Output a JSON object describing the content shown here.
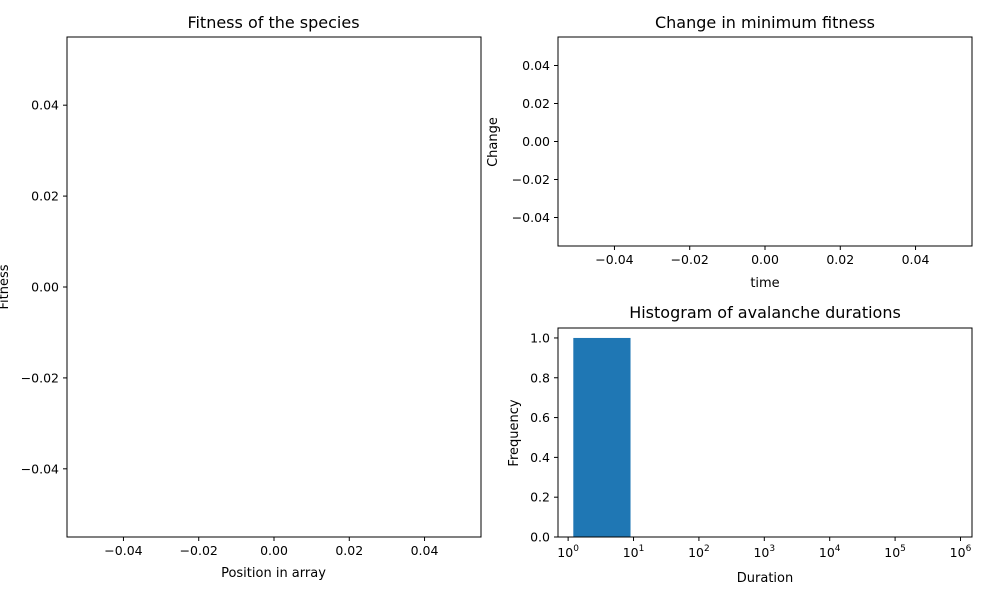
{
  "colors": {
    "bar": "#1f77b4",
    "axis": "#000000",
    "background": "#ffffff"
  },
  "chart_data": [
    {
      "id": "fitness",
      "type": "scatter",
      "title": "Fitness of the species",
      "xlabel": "Position in array",
      "ylabel": "Fitness",
      "x": [],
      "y": [],
      "xlim": [
        -0.055,
        0.055
      ],
      "ylim": [
        -0.055,
        0.055
      ],
      "xticks": [
        -0.04,
        -0.02,
        0.0,
        0.02,
        0.04
      ],
      "xtick_labels": [
        "−0.04",
        "−0.02",
        "0.00",
        "0.02",
        "0.04"
      ],
      "yticks": [
        -0.04,
        -0.02,
        0.0,
        0.02,
        0.04
      ],
      "ytick_labels": [
        "−0.04",
        "−0.02",
        "0.00",
        "0.02",
        "0.04"
      ],
      "grid": false
    },
    {
      "id": "change",
      "type": "line",
      "title": "Change in minimum fitness",
      "xlabel": "time",
      "ylabel": "Change",
      "x": [],
      "y": [],
      "xlim": [
        -0.055,
        0.055
      ],
      "ylim": [
        -0.055,
        0.055
      ],
      "xticks": [
        -0.04,
        -0.02,
        0.0,
        0.02,
        0.04
      ],
      "xtick_labels": [
        "−0.04",
        "−0.02",
        "0.00",
        "0.02",
        "0.04"
      ],
      "yticks": [
        -0.04,
        -0.02,
        0.0,
        0.02,
        0.04
      ],
      "ytick_labels": [
        "−0.04",
        "−0.02",
        "0.00",
        "0.02",
        "0.04"
      ],
      "grid": false
    },
    {
      "id": "histogram",
      "type": "bar",
      "title": "Histogram of avalanche durations",
      "xlabel": "Duration",
      "ylabel": "Frequency",
      "xscale": "log",
      "bins": [
        {
          "start": 1.2,
          "end": 9.0,
          "value": 1.0
        }
      ],
      "xlim": [
        0.7,
        1500000
      ],
      "ylim": [
        0.0,
        1.05
      ],
      "xticks": [
        1,
        10,
        100,
        1000,
        10000,
        100000,
        1000000
      ],
      "xtick_labels": [
        {
          "base": "10",
          "exp": "0"
        },
        {
          "base": "10",
          "exp": "1"
        },
        {
          "base": "10",
          "exp": "2"
        },
        {
          "base": "10",
          "exp": "3"
        },
        {
          "base": "10",
          "exp": "4"
        },
        {
          "base": "10",
          "exp": "5"
        },
        {
          "base": "10",
          "exp": "6"
        }
      ],
      "yticks": [
        0.0,
        0.2,
        0.4,
        0.6,
        0.8,
        1.0
      ],
      "ytick_labels": [
        "0.0",
        "0.2",
        "0.4",
        "0.6",
        "0.8",
        "1.0"
      ],
      "grid": false
    }
  ]
}
